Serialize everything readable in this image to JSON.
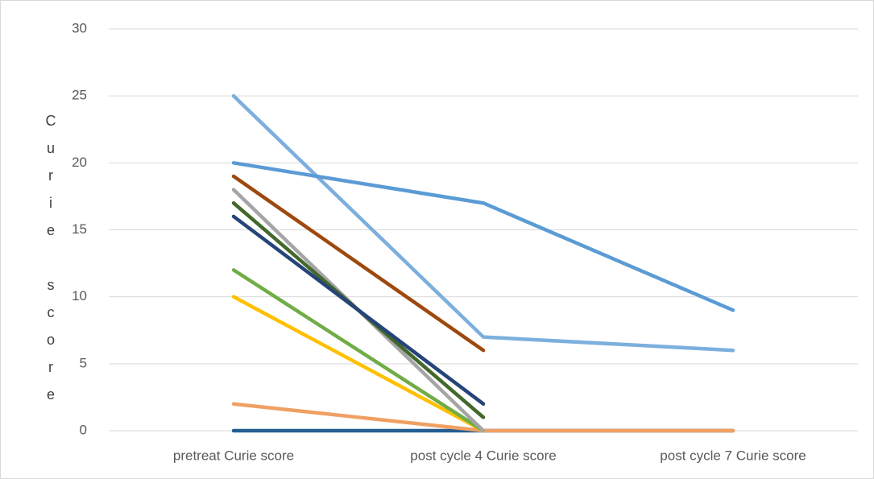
{
  "chart_data": {
    "type": "line",
    "y_label": "Curie score",
    "categories": [
      "pretreat Curie score",
      "post cycle 4 Curie score",
      "post cycle 7 Curie score"
    ],
    "series": [
      {
        "color": "#255e91",
        "values": [
          0,
          0,
          0
        ]
      },
      {
        "color": "#f0a063",
        "values": [
          2,
          0,
          0
        ]
      },
      {
        "color": "#ffc000",
        "values": [
          10,
          0,
          null
        ]
      },
      {
        "color": "#70ad47",
        "values": [
          12,
          0,
          null
        ]
      },
      {
        "color": "#a5a5a5",
        "values": [
          18,
          0,
          null
        ]
      },
      {
        "color": "#43682b",
        "values": [
          17,
          1,
          null
        ]
      },
      {
        "color": "#264478",
        "values": [
          16,
          2,
          null
        ]
      },
      {
        "color": "#9e480e",
        "values": [
          19,
          6,
          null
        ]
      },
      {
        "color": "#7cafdd",
        "values": [
          25,
          7,
          6
        ]
      },
      {
        "color": "#5b9bd5",
        "values": [
          20,
          17,
          9
        ]
      }
    ],
    "ylim": [
      0,
      30
    ],
    "yticks": [
      0,
      5,
      10,
      15,
      20,
      25,
      30
    ],
    "grid": true
  }
}
